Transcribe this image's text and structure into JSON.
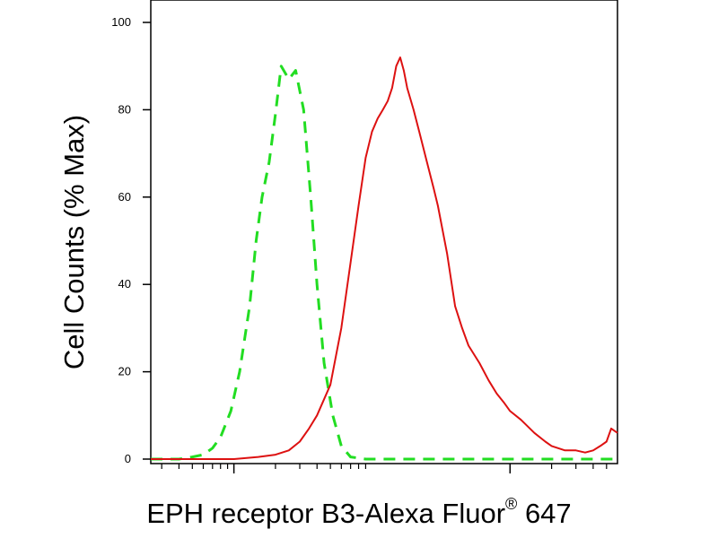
{
  "chart_data": {
    "type": "line",
    "title": "",
    "xlabel": "EPH receptor B3-Alexa Fluor",
    "xlabel_superscript": "®",
    "xlabel_suffix": "647",
    "ylabel": "Cell Counts (% Max)",
    "x_scale": "log",
    "xlim": [
      0.25,
      600
    ],
    "ylim": [
      0,
      105
    ],
    "y_ticks": [
      0,
      20,
      40,
      60,
      80,
      100
    ],
    "x_major_ticks": [
      1,
      100
    ],
    "x_minor_ticks": [
      0.3,
      0.4,
      0.5,
      0.6,
      0.7,
      0.8,
      0.9,
      2,
      3,
      4,
      5,
      6,
      7,
      8,
      9,
      200,
      300,
      400,
      500
    ],
    "grid": false,
    "legend": "none",
    "series": [
      {
        "color": "#22dd22",
        "style": "dashed",
        "x": [
          0.25,
          0.4,
          0.5,
          0.6,
          0.7,
          0.8,
          0.95,
          1.1,
          1.3,
          1.45,
          1.6,
          1.8,
          2.0,
          2.2,
          2.5,
          2.8,
          3.2,
          3.6,
          4.0,
          4.5,
          5.2,
          6.0,
          7.0,
          9.0,
          20,
          100,
          600
        ],
        "y": [
          0,
          0,
          0.5,
          1,
          2.5,
          5,
          11,
          20,
          35,
          50,
          60,
          68,
          79,
          90,
          87,
          89,
          80,
          60,
          40,
          22,
          10,
          3,
          0.5,
          0,
          0,
          0,
          0
        ]
      },
      {
        "color": "#dd1111",
        "style": "solid",
        "x": [
          0.25,
          1.0,
          1.5,
          2.0,
          2.5,
          3.0,
          3.5,
          4.0,
          5.0,
          6.0,
          7.0,
          8.0,
          9.0,
          10,
          11,
          12,
          13,
          14,
          15,
          16,
          17,
          18,
          20,
          22,
          25,
          28,
          30,
          35,
          40,
          45,
          50,
          60,
          70,
          80,
          90,
          100,
          120,
          150,
          180,
          200,
          250,
          300,
          350,
          400,
          450,
          500,
          540,
          600
        ],
        "y": [
          0,
          0,
          0.5,
          1,
          2,
          4,
          7,
          10,
          17,
          30,
          45,
          58,
          69,
          75,
          78,
          80,
          82,
          85,
          90,
          92,
          89,
          85,
          80,
          75,
          68,
          62,
          58,
          47,
          35,
          30,
          26,
          22,
          18,
          15,
          13,
          11,
          9,
          6,
          4,
          3,
          2,
          2,
          1.5,
          2,
          3,
          4,
          7,
          6
        ]
      }
    ]
  }
}
